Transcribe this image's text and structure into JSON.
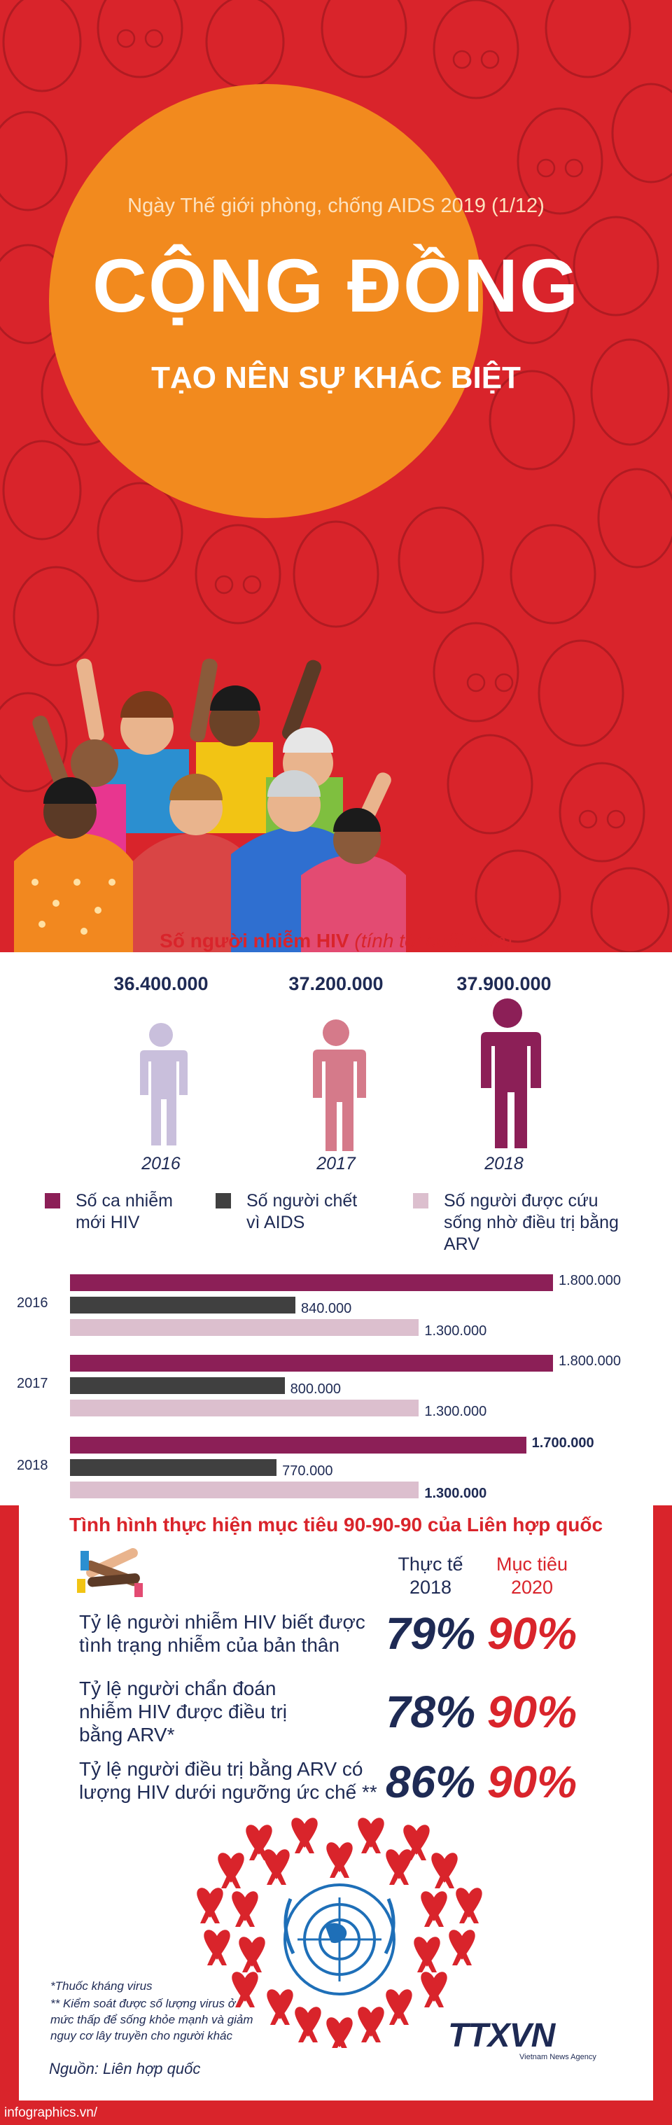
{
  "colors": {
    "red": "#d9242b",
    "orange": "#f28a1e",
    "navy": "#1e2a54",
    "purple": "#8c1f57",
    "dark_gray": "#404040",
    "light_pink": "#dcbfce"
  },
  "hero": {
    "subtitle": "Ngày Thế giới phòng, chống AIDS 2019 (1/12)",
    "title": "CỘNG ĐỒNG",
    "tagline": "TẠO NÊN SỰ KHÁC BIỆT"
  },
  "hiv": {
    "title": "Số người nhiễm HIV",
    "title_note": "(tính tới cuối năm)",
    "years": [
      {
        "count": "36.400.000",
        "year": "2016"
      },
      {
        "count": "37.200.000",
        "year": "2017"
      },
      {
        "count": "37.900.000",
        "year": "2018"
      }
    ]
  },
  "legend": {
    "new_infections": "Số ca nhiễm mới HIV",
    "deaths": "Số người chết vì AIDS",
    "arv": "Số người được cứu sống nhờ điều trị bằng ARV"
  },
  "chart_data": {
    "type": "bar",
    "orientation": "horizontal",
    "categories": [
      "2016",
      "2017",
      "2018"
    ],
    "series": [
      {
        "name": "Số ca nhiễm mới HIV",
        "values": [
          1800000,
          1800000,
          1700000
        ],
        "labels": [
          "1.800.000",
          "1.800.000",
          "1.700.000"
        ],
        "color": "#8c1f57"
      },
      {
        "name": "Số người chết vì AIDS",
        "values": [
          840000,
          800000,
          770000
        ],
        "labels": [
          "840.000",
          "800.000",
          "770.000"
        ],
        "color": "#404040"
      },
      {
        "name": "Số người được cứu sống nhờ điều trị bằng ARV",
        "values": [
          1300000,
          1300000,
          1300000
        ],
        "labels": [
          "1.300.000",
          "1.300.000",
          "1.300.000"
        ],
        "color": "#dcbfce"
      }
    ],
    "xlim": [
      0,
      1800000
    ]
  },
  "goal": {
    "title": "Tình hình thực hiện mục tiêu 90-90-90 của Liên hợp quốc",
    "col_actual": "Thực tế 2018",
    "col_target": "Mục tiêu 2020",
    "rows": [
      {
        "label": "Tỷ lệ người nhiễm HIV biết được tình trạng nhiễm của bản thân",
        "actual": "79%",
        "target": "90%"
      },
      {
        "label": "Tỷ lệ người chẩn đoán nhiễm HIV được điều trị bằng  ARV*",
        "actual": "78%",
        "target": "90%"
      },
      {
        "label": "Tỷ lệ người điều trị bằng ARV có lượng HIV dưới ngưỡng ức chế **",
        "actual": "86%",
        "target": "90%"
      }
    ],
    "footnote1": "*Thuốc kháng virus",
    "footnote2": "** Kiểm soát được số lượng virus ở mức thấp để sống khỏe mạnh và giảm nguy cơ lây truyền cho người khác",
    "source": "Nguồn:  Liên hợp quốc",
    "agency": "TTXVN",
    "agency_sub": "Vietnam News Agency",
    "website": "infographics.vn/"
  }
}
